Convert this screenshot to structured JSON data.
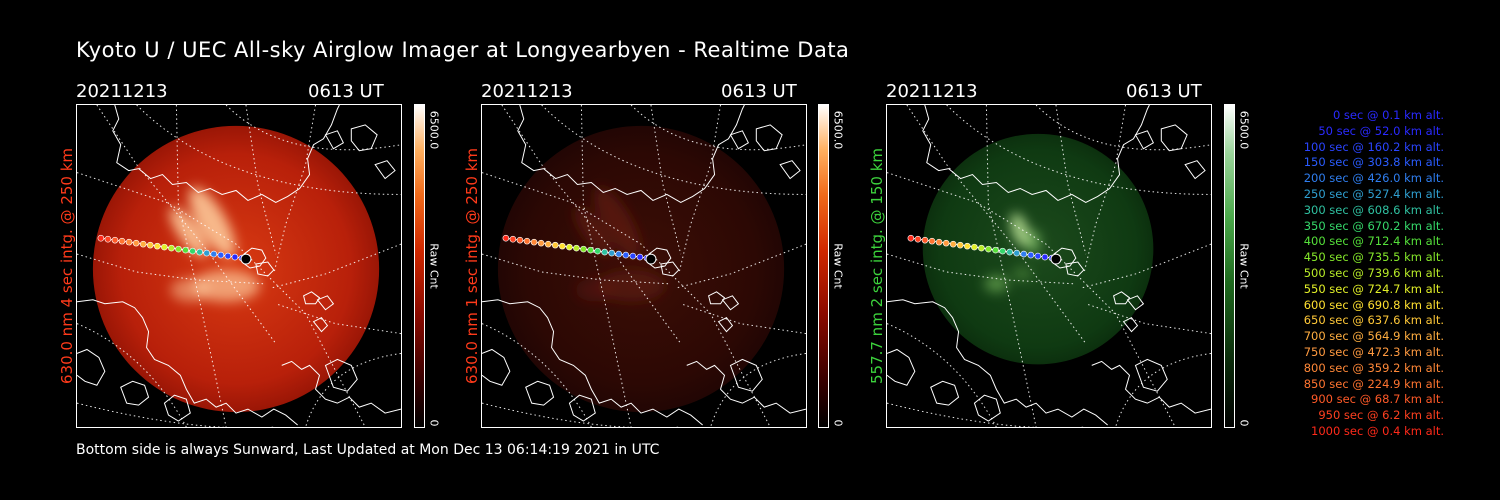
{
  "title": "Kyoto U / UEC All-sky Airglow Imager at Longyearbyen - Realtime Data",
  "panels": [
    {
      "date": "20211213",
      "time": "0613 UT",
      "side_label": "630.0 nm 4 sec intg. @ 250 km",
      "label_color": "#ff3a1a",
      "cbar_max": "6500.0",
      "cbar_unit": "Raw Cnt",
      "cbar_min": "0",
      "colormap": "red",
      "brightness": 1.0
    },
    {
      "date": "20211213",
      "time": "0613 UT",
      "side_label": "630.0 nm 1 sec intg. @ 250 km",
      "label_color": "#ff3a1a",
      "cbar_max": "6500.0",
      "cbar_unit": "Raw Cnt",
      "cbar_min": "0",
      "colormap": "red",
      "brightness": 0.35
    },
    {
      "date": "20211213",
      "time": "0613 UT",
      "side_label": "557.7 nm 2 sec intg. @ 150 km",
      "label_color": "#3cd23c",
      "cbar_max": "6500.0",
      "cbar_unit": "Raw Cnt",
      "cbar_min": "0",
      "colormap": "green",
      "brightness": 0.45
    }
  ],
  "legend": [
    {
      "text": "0 sec @   0.1 km alt.",
      "color": "#2a2aff"
    },
    {
      "text": "50 sec @  52.0 km alt.",
      "color": "#2a2aff"
    },
    {
      "text": "100 sec @ 160.2 km alt.",
      "color": "#2a44ff"
    },
    {
      "text": "150 sec @ 303.8 km alt.",
      "color": "#2a5cff"
    },
    {
      "text": "200 sec @ 426.0 km alt.",
      "color": "#2f7ef0"
    },
    {
      "text": "250 sec @ 527.4 km alt.",
      "color": "#2f9fd0"
    },
    {
      "text": "300 sec @ 608.6 km alt.",
      "color": "#2fc0a0"
    },
    {
      "text": "350 sec @ 670.2 km alt.",
      "color": "#35d86a"
    },
    {
      "text": "400 sec @ 712.4 km alt.",
      "color": "#55e03a"
    },
    {
      "text": "450 sec @ 735.5 km alt.",
      "color": "#85e82a"
    },
    {
      "text": "500 sec @ 739.6 km alt.",
      "color": "#b8ec28"
    },
    {
      "text": "550 sec @ 724.7 km alt.",
      "color": "#e2f028"
    },
    {
      "text": "600 sec @ 690.8 km alt.",
      "color": "#ffe030"
    },
    {
      "text": "650 sec @ 637.6 km alt.",
      "color": "#ffc838"
    },
    {
      "text": "700 sec @ 564.9 km alt.",
      "color": "#ffae40"
    },
    {
      "text": "750 sec @ 472.3 km alt.",
      "color": "#ff9a40"
    },
    {
      "text": "800 sec @ 359.2 km alt.",
      "color": "#ff8838"
    },
    {
      "text": "850 sec @ 224.9 km alt.",
      "color": "#ff7430"
    },
    {
      "text": "900 sec @  68.7 km alt.",
      "color": "#ff5a28"
    },
    {
      "text": "950 sec @   6.2 km alt.",
      "color": "#ff4020"
    },
    {
      "text": "1000 sec @   0.4 km alt.",
      "color": "#ff2a1a"
    }
  ],
  "footer": "Bottom side is always Sunward, Last Updated at Mon Dec 13 06:14:19 2021 in UTC"
}
